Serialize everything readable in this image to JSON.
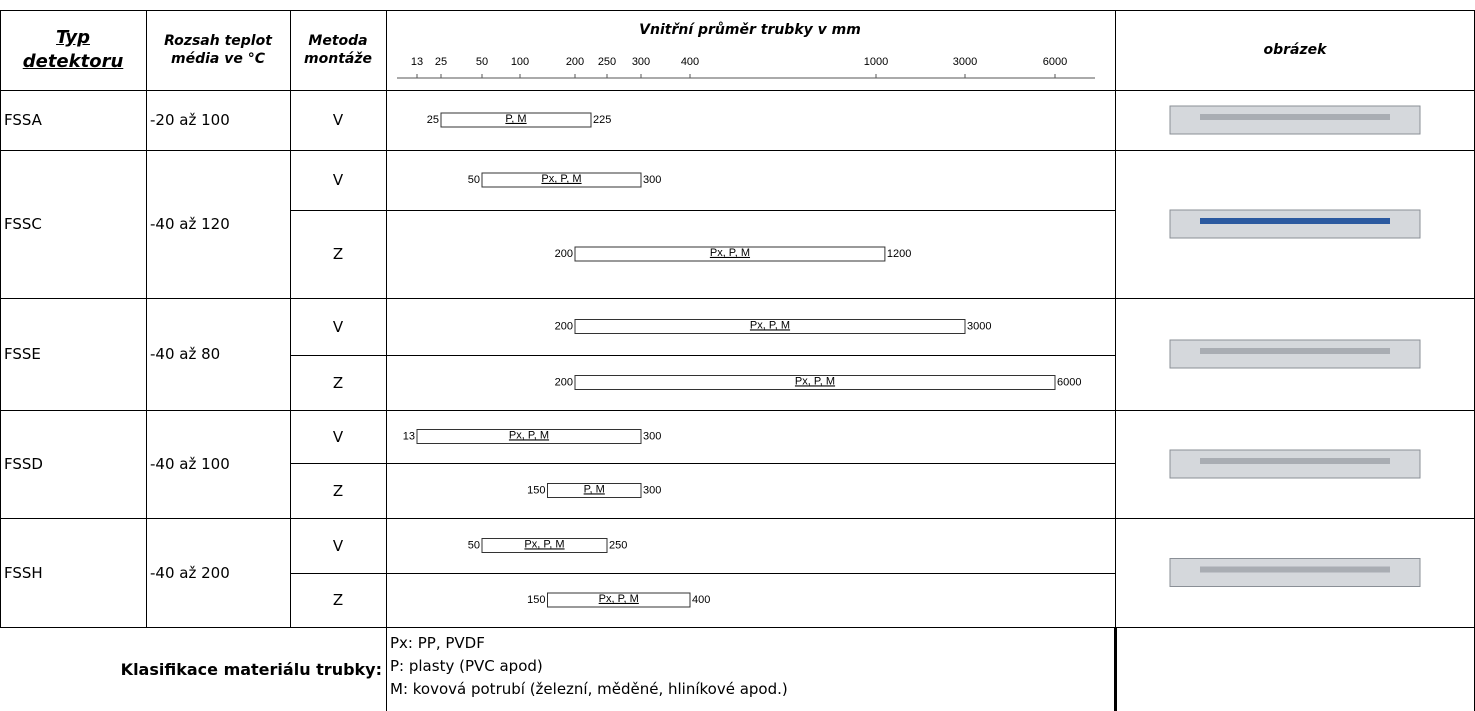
{
  "header": {
    "type": "Typ detektoru",
    "temperature": "Rozsah teplot média ve °C",
    "method": "Metoda montáže",
    "image": "obrázek"
  },
  "axis": {
    "title": "Vnitřní průměr trubky v mm",
    "ticks": [
      13,
      25,
      50,
      100,
      200,
      250,
      300,
      400,
      1000,
      3000,
      6000
    ]
  },
  "rows": [
    {
      "type": "FSSA",
      "temperature": "-20 až 100",
      "methods": [
        {
          "method": "V",
          "min": 25,
          "max": 225,
          "materials": "P, M"
        }
      ]
    },
    {
      "type": "FSSC",
      "temperature": "-40 až 120",
      "methods": [
        {
          "method": "V",
          "min": 50,
          "max": 300,
          "materials": "Px, P, M"
        },
        {
          "method": "Z",
          "min": 200,
          "max": 1200,
          "materials": "Px, P, M"
        }
      ]
    },
    {
      "type": "FSSE",
      "temperature": "-40 až 80",
      "methods": [
        {
          "method": "V",
          "min": 200,
          "max": 3000,
          "materials": "Px, P, M"
        },
        {
          "method": "Z",
          "min": 200,
          "max": 6000,
          "materials": "Px, P, M"
        }
      ]
    },
    {
      "type": "FSSD",
      "temperature": "-40 až 100",
      "methods": [
        {
          "method": "V",
          "min": 13,
          "max": 300,
          "materials": "Px, P, M"
        },
        {
          "method": "Z",
          "min": 150,
          "max": 300,
          "materials": "P, M"
        }
      ]
    },
    {
      "type": "FSSH",
      "temperature": "-40 až 200",
      "methods": [
        {
          "method": "V",
          "min": 50,
          "max": 250,
          "materials": "Px, P, M"
        },
        {
          "method": "Z",
          "min": 150,
          "max": 400,
          "materials": "Px, P, M"
        }
      ]
    }
  ],
  "legend": {
    "label": "Klasifikace materiálu trubky:",
    "lines": [
      "Px: PP, PVDF",
      "P: plasty (PVC apod)",
      "M: kovová potrubí (železní, měděné, hliníkové apod.)"
    ]
  }
}
